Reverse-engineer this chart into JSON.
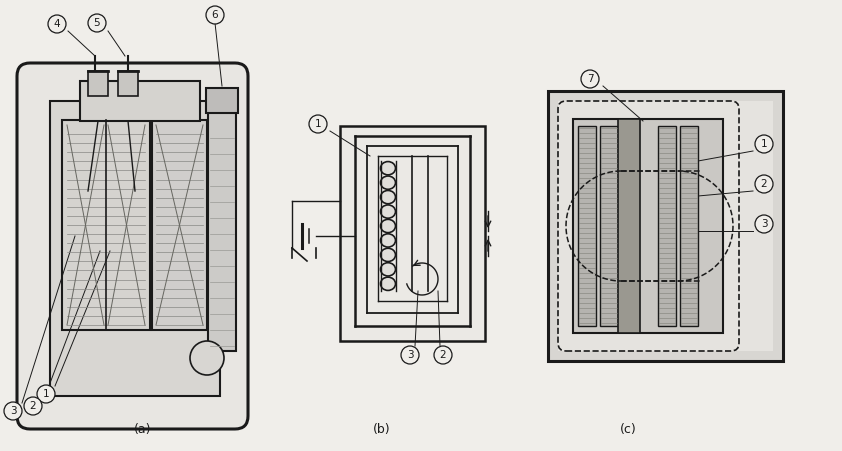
{
  "bg_color": "#f0eeea",
  "line_color": "#1a1a1a",
  "white": "#ffffff",
  "light_gray": "#e0deda",
  "med_gray": "#c8c5c0",
  "dark_gray": "#999990",
  "label_a": "(a)",
  "label_b": "(b)",
  "label_c": "(c)",
  "fig_width": 8.42,
  "fig_height": 4.51,
  "dpi": 100
}
